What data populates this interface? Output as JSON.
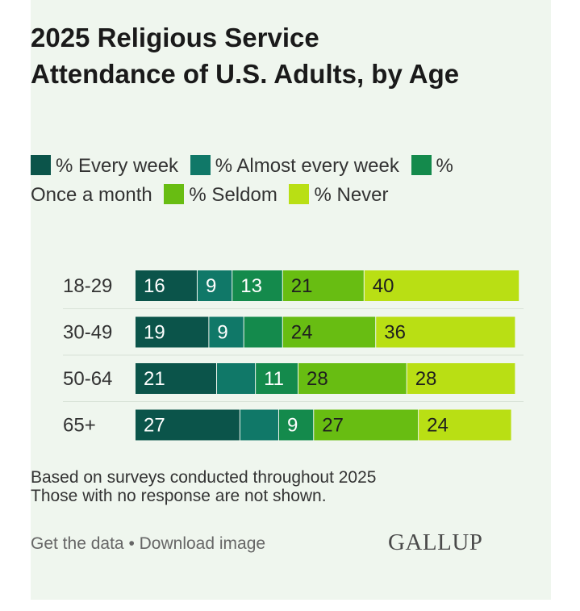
{
  "footer": {
    "get_data": "Get the data",
    "separator": "•",
    "download": "Download image",
    "brand": "GALLUP"
  },
  "notes": [
    "Based on surveys conducted throughout 2025",
    "Those with no response are not shown."
  ],
  "colors": {
    "background": "#eff6ee",
    "series": [
      "#0b544a",
      "#107868",
      "#148a4c",
      "#68bd12",
      "#b9df14"
    ]
  },
  "chart_data": {
    "type": "bar",
    "orientation": "horizontal",
    "stacked": true,
    "title": "2025 Religious Service Attendance of U.S. Adults, by Age",
    "categories": [
      "18-29",
      "30-49",
      "50-64",
      "65+"
    ],
    "series": [
      {
        "name": "% Every week",
        "values": [
          16,
          19,
          21,
          27
        ]
      },
      {
        "name": "% Almost every week",
        "values": [
          9,
          9,
          10,
          10
        ]
      },
      {
        "name": "% Once a month",
        "values": [
          13,
          10,
          11,
          9
        ]
      },
      {
        "name": "% Seldom",
        "values": [
          21,
          24,
          28,
          27
        ]
      },
      {
        "name": "% Never",
        "values": [
          40,
          36,
          28,
          24
        ]
      }
    ],
    "shown_labels": [
      [
        "16",
        "9",
        "13",
        "21",
        "40"
      ],
      [
        "19",
        "9",
        "",
        "24",
        "36"
      ],
      [
        "21",
        "",
        "11",
        "28",
        "28"
      ],
      [
        "27",
        "",
        "9",
        "27",
        "24"
      ]
    ],
    "xlim": [
      0,
      100
    ],
    "grid": false,
    "legend": "top"
  }
}
